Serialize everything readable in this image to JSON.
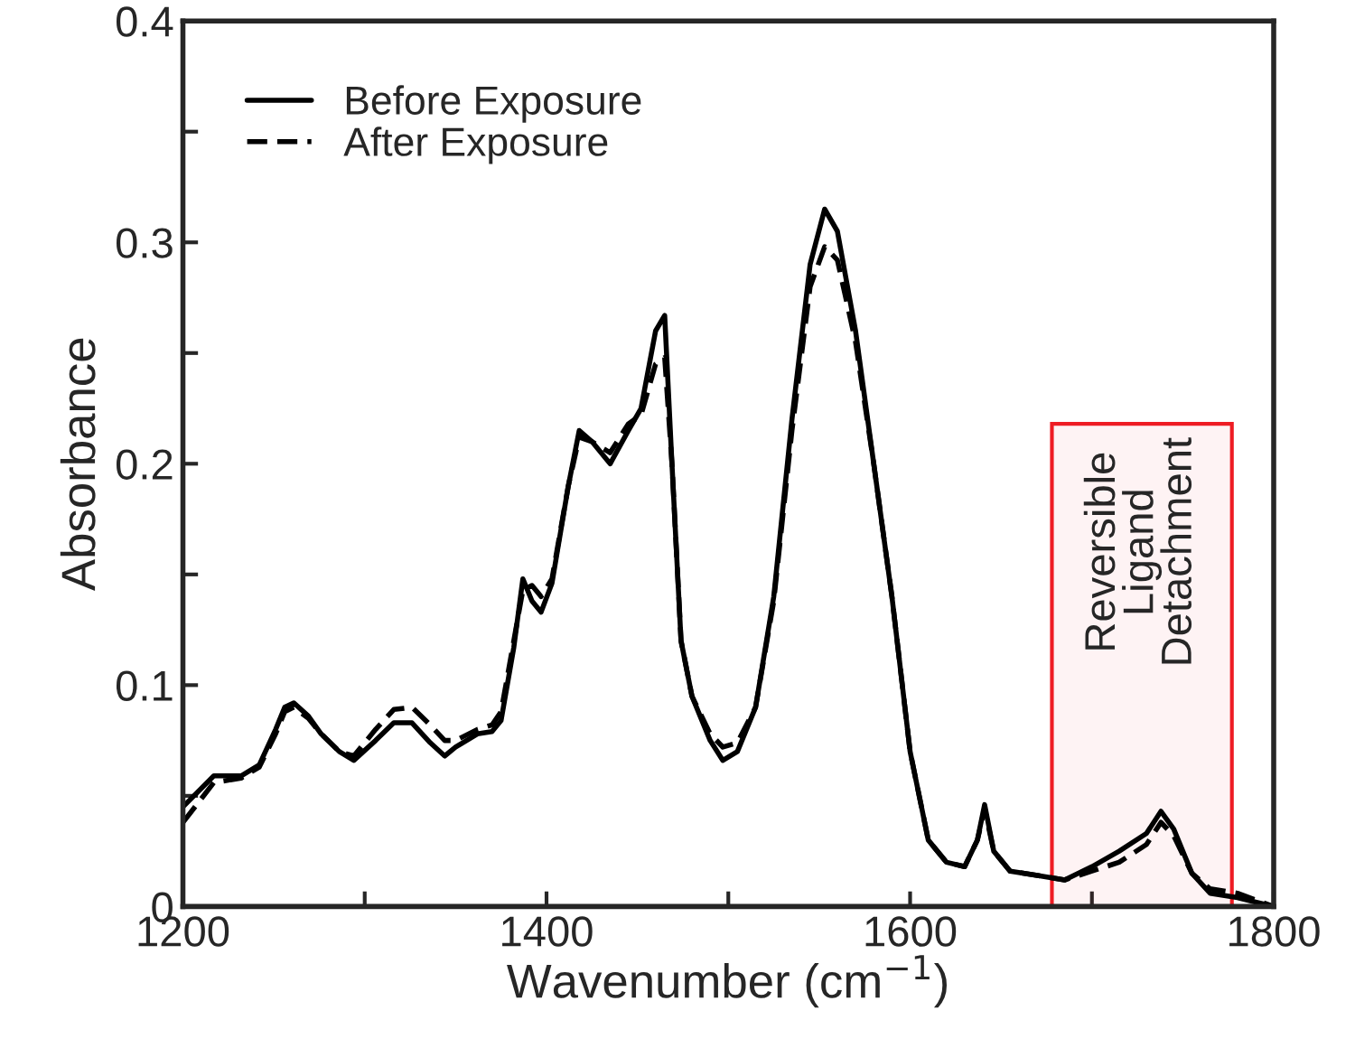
{
  "chart_data": {
    "type": "line",
    "xlabel": "Wavenumber (cm$^{−1}$)",
    "ylabel": "Absorbance",
    "xlim": [
      1200,
      1800
    ],
    "xticks": [
      1200,
      {
        "value": 1300,
        "label": null
      },
      1400,
      {
        "value": 1500,
        "label": null
      },
      1600,
      {
        "value": 1700,
        "label": null
      },
      1800
    ],
    "ylim": [
      0,
      0.4
    ],
    "yticks": [
      0,
      {
        "value": 0.05,
        "label": null
      },
      0.1,
      {
        "value": 0.15,
        "label": null
      },
      0.2,
      {
        "value": 0.25,
        "label": null
      },
      0.3,
      {
        "value": 0.35,
        "label": null
      },
      0.4
    ],
    "grid": false,
    "legend": "top left",
    "bands": [
      {
        "axis": "x",
        "from": 1678,
        "to": 1777,
        "label": "Reversible\nLigand\nDetachment",
        "color": "#ee1c24"
      }
    ],
    "series": [
      {
        "name": "Before Exposure",
        "color": "#000000",
        "line_style": "solid",
        "x": [
          1200,
          1217,
          1232,
          1242,
          1251,
          1256,
          1261,
          1269,
          1276,
          1286,
          1294,
          1306,
          1316,
          1326,
          1336,
          1344,
          1350,
          1362,
          1370,
          1375,
          1382,
          1387,
          1392,
          1397,
          1403,
          1412,
          1418,
          1425,
          1435,
          1445,
          1452,
          1460,
          1465,
          1469,
          1474,
          1480,
          1490,
          1497,
          1505,
          1515,
          1525,
          1535,
          1545,
          1553,
          1560,
          1570,
          1580,
          1590,
          1600,
          1610,
          1620,
          1630,
          1637,
          1641,
          1646,
          1655,
          1670,
          1685,
          1700,
          1715,
          1730,
          1738,
          1745,
          1755,
          1765,
          1780,
          1790,
          1800
        ],
        "values": [
          0.045,
          0.059,
          0.059,
          0.064,
          0.08,
          0.09,
          0.092,
          0.086,
          0.078,
          0.07,
          0.066,
          0.075,
          0.083,
          0.083,
          0.074,
          0.068,
          0.072,
          0.078,
          0.079,
          0.084,
          0.117,
          0.148,
          0.138,
          0.133,
          0.146,
          0.19,
          0.215,
          0.21,
          0.2,
          0.215,
          0.225,
          0.26,
          0.267,
          0.2,
          0.12,
          0.095,
          0.075,
          0.066,
          0.07,
          0.09,
          0.14,
          0.22,
          0.29,
          0.315,
          0.305,
          0.26,
          0.2,
          0.14,
          0.07,
          0.03,
          0.02,
          0.018,
          0.03,
          0.046,
          0.025,
          0.016,
          0.014,
          0.012,
          0.018,
          0.025,
          0.033,
          0.043,
          0.035,
          0.015,
          0.006,
          0.004,
          0.002,
          0.0
        ]
      },
      {
        "name": "After Exposure",
        "color": "#000000",
        "line_style": "dashed",
        "x": [
          1200,
          1217,
          1232,
          1242,
          1251,
          1256,
          1261,
          1269,
          1276,
          1286,
          1294,
          1306,
          1316,
          1326,
          1336,
          1344,
          1350,
          1362,
          1370,
          1375,
          1382,
          1387,
          1392,
          1397,
          1403,
          1412,
          1418,
          1425,
          1435,
          1445,
          1452,
          1460,
          1465,
          1469,
          1474,
          1480,
          1490,
          1497,
          1505,
          1515,
          1525,
          1535,
          1545,
          1553,
          1560,
          1570,
          1580,
          1590,
          1600,
          1610,
          1620,
          1630,
          1637,
          1641,
          1646,
          1655,
          1670,
          1685,
          1700,
          1715,
          1730,
          1738,
          1745,
          1755,
          1765,
          1780,
          1790,
          1800
        ],
        "values": [
          0.038,
          0.056,
          0.058,
          0.063,
          0.078,
          0.088,
          0.09,
          0.085,
          0.078,
          0.07,
          0.068,
          0.08,
          0.089,
          0.09,
          0.082,
          0.075,
          0.075,
          0.08,
          0.082,
          0.088,
          0.12,
          0.143,
          0.145,
          0.14,
          0.148,
          0.19,
          0.212,
          0.21,
          0.205,
          0.218,
          0.222,
          0.245,
          0.248,
          0.2,
          0.12,
          0.095,
          0.078,
          0.072,
          0.074,
          0.09,
          0.138,
          0.215,
          0.28,
          0.298,
          0.292,
          0.255,
          0.2,
          0.14,
          0.07,
          0.03,
          0.02,
          0.018,
          0.03,
          0.044,
          0.025,
          0.016,
          0.014,
          0.012,
          0.016,
          0.02,
          0.028,
          0.038,
          0.032,
          0.015,
          0.008,
          0.006,
          0.003,
          0.0
        ]
      }
    ]
  }
}
